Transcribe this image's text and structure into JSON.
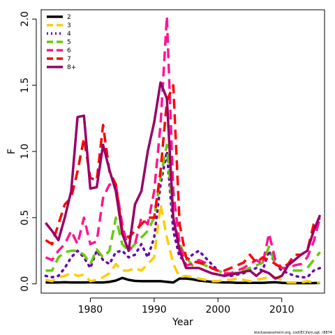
{
  "chart_data": {
    "type": "line",
    "title": "",
    "xlabel": "Year",
    "ylabel": "F",
    "xlim": [
      1972.3,
      2016.7
    ],
    "ylim": [
      -0.07,
      2.07
    ],
    "x_ticks": [
      1980,
      1990,
      2000,
      2010
    ],
    "y_ticks": [
      0.0,
      0.5,
      1.0,
      1.5,
      2.0
    ],
    "y_tick_labels": [
      "0.0",
      "0.5",
      "1.0",
      "1.5",
      "2.0"
    ],
    "grid": false,
    "legend_position": "top-left",
    "x": [
      1973,
      1974,
      1975,
      1976,
      1977,
      1978,
      1979,
      1980,
      1981,
      1982,
      1983,
      1984,
      1985,
      1986,
      1987,
      1988,
      1989,
      1990,
      1991,
      1992,
      1993,
      1994,
      1995,
      1996,
      1997,
      1998,
      1999,
      2000,
      2001,
      2002,
      2003,
      2004,
      2005,
      2006,
      2007,
      2008,
      2009,
      2010,
      2011,
      2012,
      2013,
      2014,
      2015,
      2016
    ],
    "series": [
      {
        "name": "2",
        "color": "#000000",
        "dash": "solid",
        "values": [
          0.01,
          0.01,
          0.01,
          0.012,
          0.01,
          0.01,
          0.01,
          0.012,
          0.01,
          0.01,
          0.015,
          0.025,
          0.045,
          0.03,
          0.022,
          0.02,
          0.02,
          0.02,
          0.02,
          0.015,
          0.01,
          0.04,
          0.04,
          0.035,
          0.025,
          0.02,
          0.015,
          0.012,
          0.01,
          0.01,
          0.008,
          0.008,
          0.008,
          0.008,
          0.008,
          0.01,
          0.012,
          0.008,
          0.006,
          0.006,
          0.006,
          0.006,
          0.006,
          0.008
        ]
      },
      {
        "name": "3",
        "color": "#FFCC00",
        "dash": "long",
        "values": [
          0.03,
          0.02,
          0.05,
          0.06,
          0.08,
          0.06,
          0.07,
          0.02,
          0.03,
          0.05,
          0.08,
          0.15,
          0.1,
          0.1,
          0.12,
          0.1,
          0.15,
          0.2,
          0.6,
          0.35,
          0.15,
          0.05,
          0.06,
          0.05,
          0.04,
          0.03,
          0.02,
          0.02,
          0.03,
          0.03,
          0.04,
          0.03,
          0.02,
          0.03,
          0.04,
          0.05,
          0.05,
          0.03,
          0.01,
          0.01,
          0.01,
          0.02,
          0.01,
          0.01
        ]
      },
      {
        "name": "4",
        "color": "#6600AA",
        "dash": "dot",
        "values": [
          0.06,
          0.05,
          0.06,
          0.12,
          0.2,
          0.25,
          0.2,
          0.12,
          0.25,
          0.18,
          0.15,
          0.24,
          0.25,
          0.2,
          0.22,
          0.3,
          0.2,
          0.35,
          0.75,
          1.0,
          0.4,
          0.2,
          0.18,
          0.22,
          0.25,
          0.2,
          0.15,
          0.1,
          0.08,
          0.06,
          0.07,
          0.08,
          0.1,
          0.12,
          0.1,
          0.25,
          0.15,
          0.1,
          0.08,
          0.06,
          0.05,
          0.05,
          0.1,
          0.12
        ]
      },
      {
        "name": "5",
        "color": "#66CC00",
        "dash": "long",
        "values": [
          0.1,
          0.1,
          0.2,
          0.24,
          0.25,
          0.25,
          0.22,
          0.15,
          0.26,
          0.2,
          0.25,
          0.5,
          0.3,
          0.25,
          0.3,
          0.35,
          0.4,
          0.5,
          0.8,
          1.05,
          0.5,
          0.3,
          0.2,
          0.14,
          0.16,
          0.14,
          0.12,
          0.1,
          0.08,
          0.07,
          0.09,
          0.1,
          0.12,
          0.14,
          0.16,
          0.28,
          0.15,
          0.12,
          0.11,
          0.1,
          0.1,
          0.12,
          0.18,
          0.24
        ]
      },
      {
        "name": "6",
        "color": "#FF1493",
        "dash": "long",
        "values": [
          0.2,
          0.18,
          0.25,
          0.3,
          0.4,
          0.3,
          0.5,
          0.3,
          0.32,
          0.65,
          0.75,
          0.75,
          0.45,
          0.25,
          0.3,
          0.5,
          0.45,
          0.7,
          1.2,
          2.02,
          0.7,
          0.3,
          0.14,
          0.15,
          0.18,
          0.16,
          0.12,
          0.1,
          0.08,
          0.08,
          0.1,
          0.12,
          0.15,
          0.18,
          0.15,
          0.38,
          0.18,
          0.12,
          0.12,
          0.14,
          0.15,
          0.2,
          0.32,
          0.5
        ]
      },
      {
        "name": "7",
        "color": "#FF0000",
        "dash": "long",
        "values": [
          0.33,
          0.3,
          0.45,
          0.6,
          0.65,
          0.85,
          1.1,
          0.8,
          0.78,
          1.2,
          0.85,
          0.75,
          0.4,
          0.35,
          0.4,
          0.45,
          0.5,
          0.5,
          0.85,
          1.38,
          1.5,
          0.45,
          0.2,
          0.17,
          0.16,
          0.15,
          0.12,
          0.1,
          0.1,
          0.12,
          0.14,
          0.16,
          0.22,
          0.16,
          0.2,
          0.18,
          0.15,
          0.12,
          0.15,
          0.22,
          0.22,
          0.25,
          0.45,
          0.5
        ]
      },
      {
        "name": "8+",
        "color": "#990066",
        "dash": "solid",
        "values": [
          0.46,
          0.4,
          0.33,
          0.5,
          0.7,
          1.26,
          1.27,
          0.72,
          0.73,
          1.05,
          0.86,
          0.7,
          0.38,
          0.25,
          0.6,
          0.7,
          1.0,
          1.22,
          1.52,
          1.4,
          0.5,
          0.25,
          0.12,
          0.12,
          0.12,
          0.1,
          0.08,
          0.07,
          0.06,
          0.07,
          0.08,
          0.09,
          0.1,
          0.06,
          0.1,
          0.08,
          0.04,
          0.06,
          0.14,
          0.18,
          0.22,
          0.25,
          0.4,
          0.52
        ]
      }
    ]
  },
  "footer_text": "stockassessment.org, cod(EC)fam,sgt, r8874"
}
